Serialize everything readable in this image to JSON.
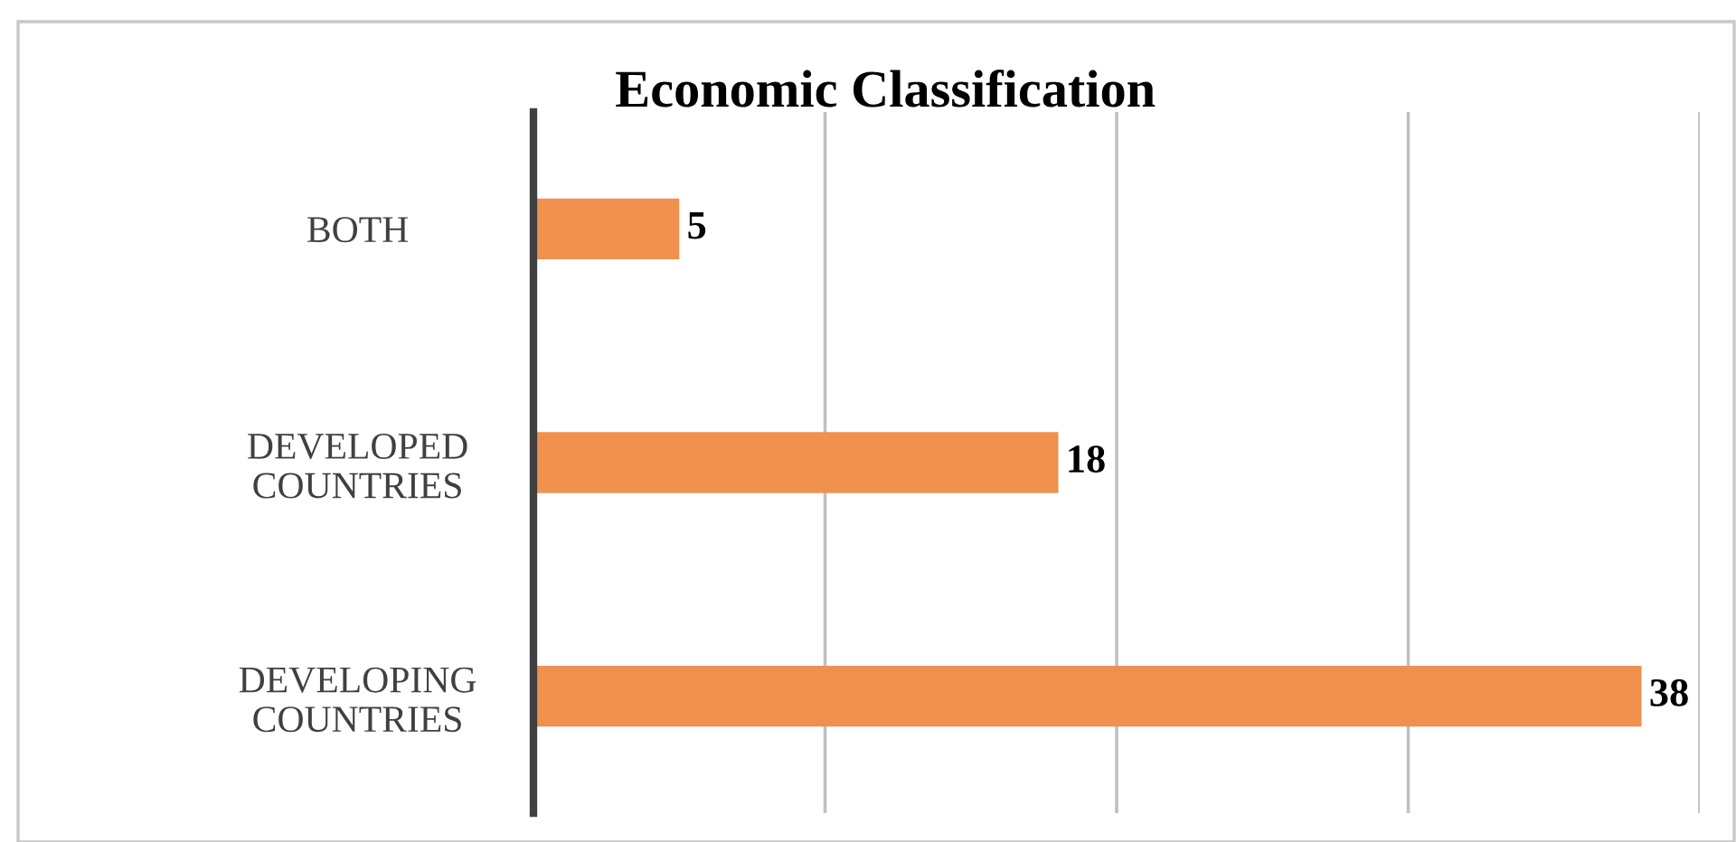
{
  "chart_data": {
    "type": "bar",
    "orientation": "horizontal",
    "title": "Economic Classification",
    "categories": [
      "BOTH",
      "DEVELOPED COUNTRIES",
      "DEVELOPING COUNTRIES"
    ],
    "values": [
      5,
      18,
      38
    ],
    "color": "#f0904f",
    "xlim": [
      0,
      40
    ],
    "xticks": [
      {
        "value": 0,
        "label": null
      },
      {
        "value": 10,
        "label": null
      },
      {
        "value": 20,
        "label": null
      },
      {
        "value": 30,
        "label": null
      },
      {
        "value": 40,
        "label": null
      }
    ],
    "grid": "x",
    "data_labels": true,
    "tick_labels": "y",
    "legend": false
  }
}
